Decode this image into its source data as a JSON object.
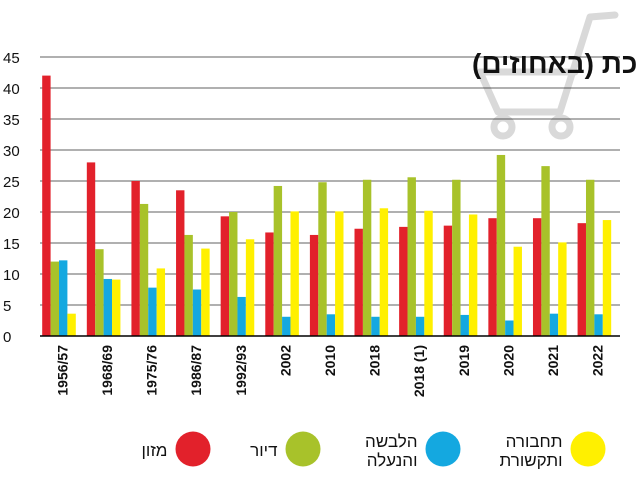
{
  "chart_data": {
    "type": "bar",
    "title": "הרכב ההוצאה לתצרוכת (באחוזים)",
    "xlabel": "",
    "ylabel": "",
    "ylim": [
      0,
      45
    ],
    "yticks": [
      0,
      5,
      10,
      15,
      20,
      25,
      30,
      35,
      40,
      45
    ],
    "grid": true,
    "legend_position": "bottom",
    "categories": [
      "1956/57",
      "1968/69",
      "1975/76",
      "1986/87",
      "1992/93",
      "2002",
      "2010",
      "2018",
      "2018 (1)",
      "2019",
      "2020",
      "2021",
      "2022"
    ],
    "series": [
      {
        "name": "מזון",
        "color": "#e2212b",
        "values": [
          42.0,
          28.0,
          25.0,
          23.5,
          19.3,
          16.7,
          16.3,
          17.3,
          17.6,
          17.8,
          19.0,
          19.0,
          18.2
        ]
      },
      {
        "name": "דיור",
        "color": "#a8c22a",
        "values": [
          12.0,
          14.0,
          21.3,
          16.3,
          20.0,
          24.2,
          24.8,
          25.2,
          25.6,
          25.2,
          29.2,
          27.4,
          25.2
        ]
      },
      {
        "name": "הלבשה והנעלה",
        "color": "#14a8e0",
        "values": [
          12.2,
          9.2,
          7.8,
          7.5,
          6.3,
          3.1,
          3.5,
          3.1,
          3.1,
          3.4,
          2.5,
          3.6,
          3.5
        ]
      },
      {
        "name": "תחבורה ותקשורת",
        "color": "#fff000",
        "values": [
          3.6,
          9.1,
          10.9,
          14.1,
          15.6,
          20.1,
          20.1,
          20.6,
          20.2,
          19.6,
          14.4,
          15.1,
          18.7
        ]
      }
    ]
  },
  "legend_items": [
    {
      "label_lines": [
        "מזון"
      ],
      "color": "#e2212b"
    },
    {
      "label_lines": [
        "דיור"
      ],
      "color": "#a8c22a"
    },
    {
      "label_lines": [
        "הלבשה",
        "והנעלה"
      ],
      "color": "#14a8e0"
    },
    {
      "label_lines": [
        "תחבורה",
        "ותקשורת"
      ],
      "color": "#fff000"
    }
  ],
  "decoration": {
    "cart_icon": "shopping-cart-icon"
  }
}
